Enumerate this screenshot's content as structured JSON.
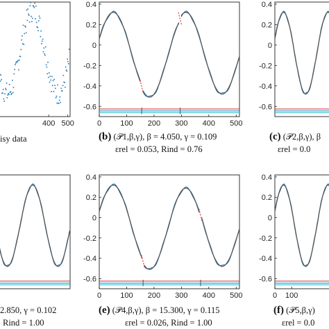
{
  "chart_data": [
    {
      "id": "a",
      "type": "scatter",
      "caption_fragment": "isy data",
      "xticks": [
        "400",
        "500"
      ],
      "yticks": [],
      "xlim": [
        0,
        512
      ],
      "ylim": [
        -0.7,
        0.4
      ],
      "series": [
        {
          "kind": "noisy",
          "color": "#1f77b4"
        }
      ]
    },
    {
      "id": "b",
      "type": "line",
      "label": "(b)",
      "model": "(𝒫1,β,γ), β = 4.050, γ = 0.109",
      "errors": "εrel = 0.053, Rind = 0.76",
      "xticks": [
        "0",
        "100",
        "200",
        "300",
        "400",
        "500"
      ],
      "yticks": [
        "0.4",
        "0.2",
        "0",
        "-0.2",
        "-0.4",
        "-0.6"
      ],
      "xlim": [
        0,
        512
      ],
      "ylim": [
        -0.7,
        0.42
      ],
      "jumps": [
        155,
        295
      ],
      "indicator_y": [
        -0.625,
        -0.645,
        -0.662
      ]
    },
    {
      "id": "c",
      "type": "line",
      "label": "(c)",
      "model": "(𝒫2,β,γ), β",
      "errors": "εrel = 0.0",
      "xticks": [],
      "yticks": [
        "0.4",
        "0.2",
        "0",
        "-0.2",
        "-0.4",
        "-0.6"
      ],
      "xlim": [
        0,
        512
      ],
      "ylim": [
        -0.7,
        0.42
      ]
    },
    {
      "id": "d",
      "type": "line",
      "model": "2.850, γ = 0.102",
      "errors": "Rind = 1.00",
      "xticks": [],
      "yticks": [],
      "xlim": [
        0,
        512
      ],
      "ylim": [
        -0.7,
        0.42
      ]
    },
    {
      "id": "e",
      "type": "line",
      "label": "(e)",
      "model": "(𝒫4,β,γ), β = 15.300, γ = 0.115",
      "errors": "εrel = 0.026, Rind = 1.00",
      "xticks": [
        "0",
        "100",
        "200",
        "300",
        "400",
        "500"
      ],
      "yticks": [
        "0.4",
        "0.2",
        "0",
        "-0.2",
        "-0.4",
        "-0.6"
      ],
      "xlim": [
        0,
        512
      ],
      "ylim": [
        -0.7,
        0.42
      ],
      "jumps": [
        160,
        370
      ],
      "indicator_y": [
        -0.625,
        -0.645,
        -0.662
      ]
    },
    {
      "id": "f",
      "type": "line",
      "label": "(f)",
      "model": "(𝒫5,β,γ)",
      "errors": "εrel = 0.0",
      "xticks": [
        "0",
        "100"
      ],
      "yticks": [
        "0.4",
        "0.2",
        "0",
        "-0.2",
        "-0.4",
        "-0.6"
      ],
      "xlim": [
        0,
        512
      ],
      "ylim": [
        -0.7,
        0.42
      ]
    }
  ],
  "colors": {
    "signal": "#555555",
    "fit": "#1f77b4",
    "jump": "#d62728",
    "ind1": "#d62728",
    "ind2": "#1f77b4",
    "ind3": "#17becf"
  }
}
